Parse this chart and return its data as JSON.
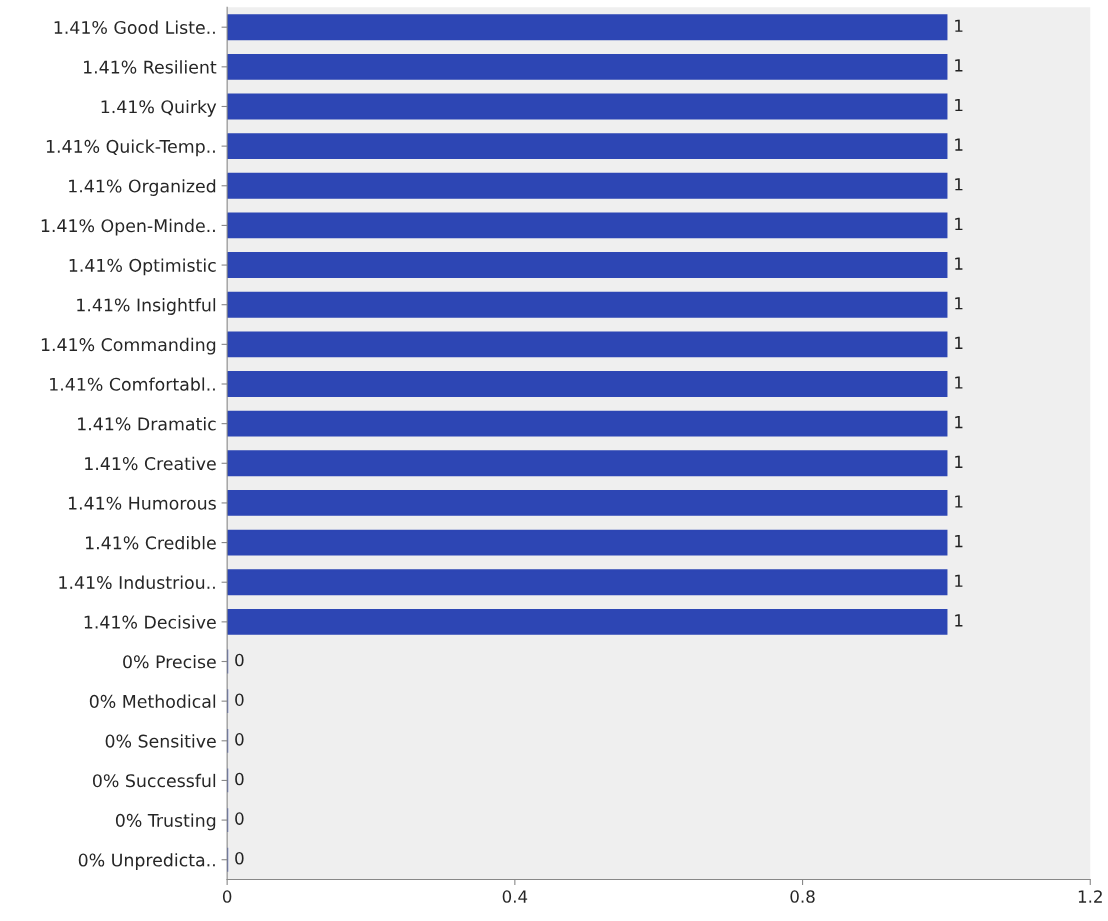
{
  "chart_data": {
    "type": "bar",
    "orientation": "horizontal",
    "categories": [
      "1.41% Good Liste..",
      "1.41% Resilient",
      "1.41% Quirky",
      "1.41% Quick-Temp..",
      "1.41% Organized",
      "1.41% Open-Minde..",
      "1.41% Optimistic",
      "1.41% Insightful",
      "1.41% Commanding",
      "1.41% Comfortabl..",
      "1.41% Dramatic",
      "1.41% Creative",
      "1.41% Humorous",
      "1.41% Credible",
      "1.41% Industriou..",
      "1.41% Decisive",
      "0% Precise",
      "0% Methodical",
      "0% Sensitive",
      "0% Successful",
      "0% Trusting",
      "0% Unpredicta.."
    ],
    "values": [
      1,
      1,
      1,
      1,
      1,
      1,
      1,
      1,
      1,
      1,
      1,
      1,
      1,
      1,
      1,
      1,
      0,
      0,
      0,
      0,
      0,
      0
    ],
    "color": "#2d46b4",
    "xlim": [
      0,
      1.2
    ],
    "xticks": [
      0,
      0.4,
      0.8,
      1.2
    ],
    "data_labels": true,
    "grid": false,
    "legend": false
  }
}
